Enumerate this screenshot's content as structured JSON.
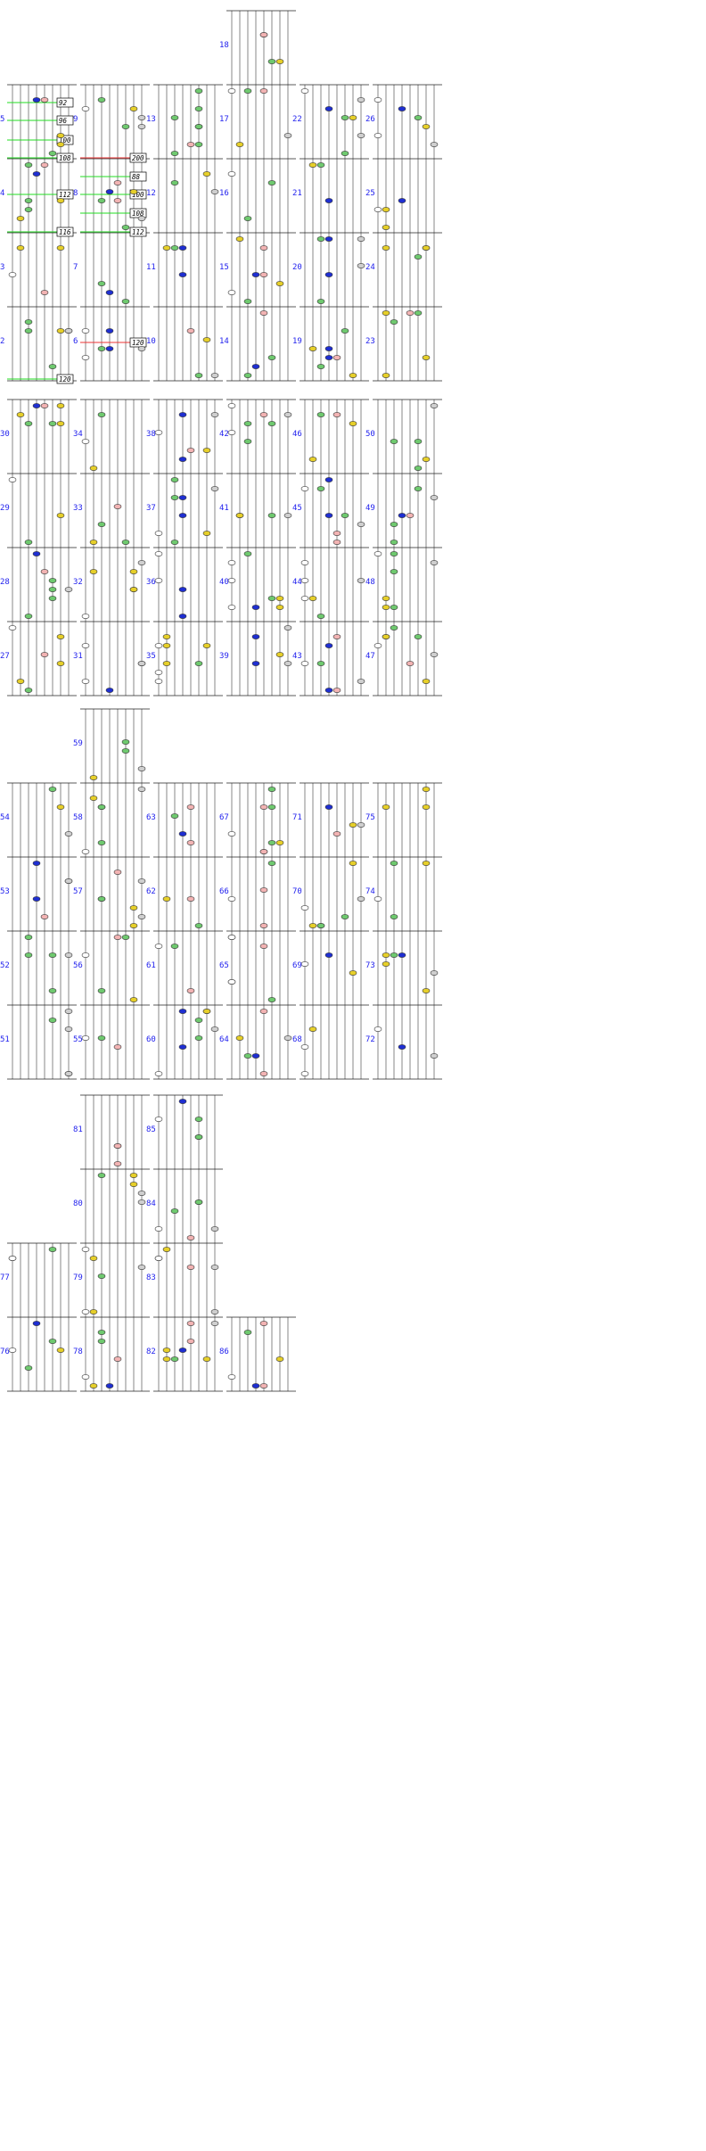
{
  "title": "",
  "bpm_markers": [
    {
      "label": "92"
    },
    {
      "label": "96"
    },
    {
      "label": "100"
    },
    {
      "label": "108"
    },
    {
      "label": "112"
    },
    {
      "label": "116"
    },
    {
      "label": "120"
    },
    {
      "label": "200"
    },
    {
      "label": "88"
    },
    {
      "label": "100"
    },
    {
      "label": "108"
    },
    {
      "label": "112"
    },
    {
      "label": "120"
    }
  ],
  "measures": [
    "2",
    "3",
    "4",
    "5",
    "6",
    "7",
    "8",
    "9",
    "10",
    "11",
    "12",
    "13",
    "14",
    "15",
    "16",
    "17",
    "18",
    "19",
    "20",
    "21",
    "22",
    "23",
    "24",
    "25",
    "26",
    "27",
    "28",
    "29",
    "30",
    "31",
    "32",
    "33",
    "34",
    "35",
    "36",
    "37",
    "38",
    "39",
    "40",
    "41",
    "42",
    "43",
    "44",
    "45",
    "46",
    "47",
    "48",
    "49",
    "50",
    "51",
    "52",
    "53",
    "54",
    "55",
    "56",
    "57",
    "58",
    "59",
    "60",
    "61",
    "62",
    "63",
    "64",
    "65",
    "66",
    "67",
    "68",
    "69",
    "70",
    "71",
    "72",
    "73",
    "74",
    "75",
    "76",
    "77",
    "78",
    "79",
    "80",
    "81",
    "82",
    "83",
    "84",
    "85",
    "86"
  ],
  "lane_colors": {
    "lane1": "#ffffff",
    "lane2": "#e6cf2a",
    "lane3": "#6fc96f",
    "lane4": "#1f2fd1",
    "lane5": "#f2b3b3",
    "lane6": "#6fc96f",
    "lane7": "#e6cf2a",
    "lane8": "#cfcfcf"
  },
  "colors": {
    "lane_line": "#555555",
    "measure_line": "#222222",
    "bpm_up_line": "#22dd22",
    "bpm_down_line": "#ee3333",
    "measure_number": "#2222ee"
  }
}
